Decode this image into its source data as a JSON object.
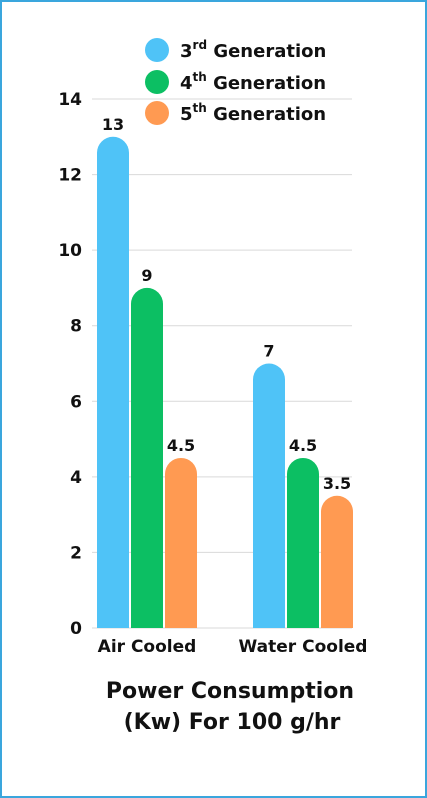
{
  "chart_data": {
    "type": "bar",
    "categories": [
      "Air Cooled",
      "Water Cooled"
    ],
    "series": [
      {
        "name": "3rd Generation",
        "name_base": "3",
        "name_sup": "rd",
        "name_rest": " Generation",
        "values": [
          13,
          7
        ],
        "color": "#4fc3f7"
      },
      {
        "name": "4th Generation",
        "name_base": "4",
        "name_sup": "th",
        "name_rest": " Generation",
        "values": [
          9,
          4.5
        ],
        "color": "#0cbf63"
      },
      {
        "name": "5th Generation",
        "name_base": "5",
        "name_sup": "th",
        "name_rest": " Generation",
        "values": [
          4.5,
          3.5
        ],
        "color": "#ff9a52"
      }
    ],
    "data_labels": [
      [
        "13",
        "7"
      ],
      [
        "9",
        "4.5"
      ],
      [
        "4.5",
        "3.5"
      ]
    ],
    "yticks": [
      "0",
      "2",
      "4",
      "6",
      "8",
      "10",
      "12",
      "14"
    ],
    "ylim": [
      0,
      14
    ],
    "grid": true,
    "legend_position": "top-right",
    "title_lines": [
      "Power Consumption",
      "(Kw) For 100 g/hr"
    ]
  },
  "colors": {
    "frame_border": "#3aa6dd",
    "grid": "#d9d9d9"
  }
}
